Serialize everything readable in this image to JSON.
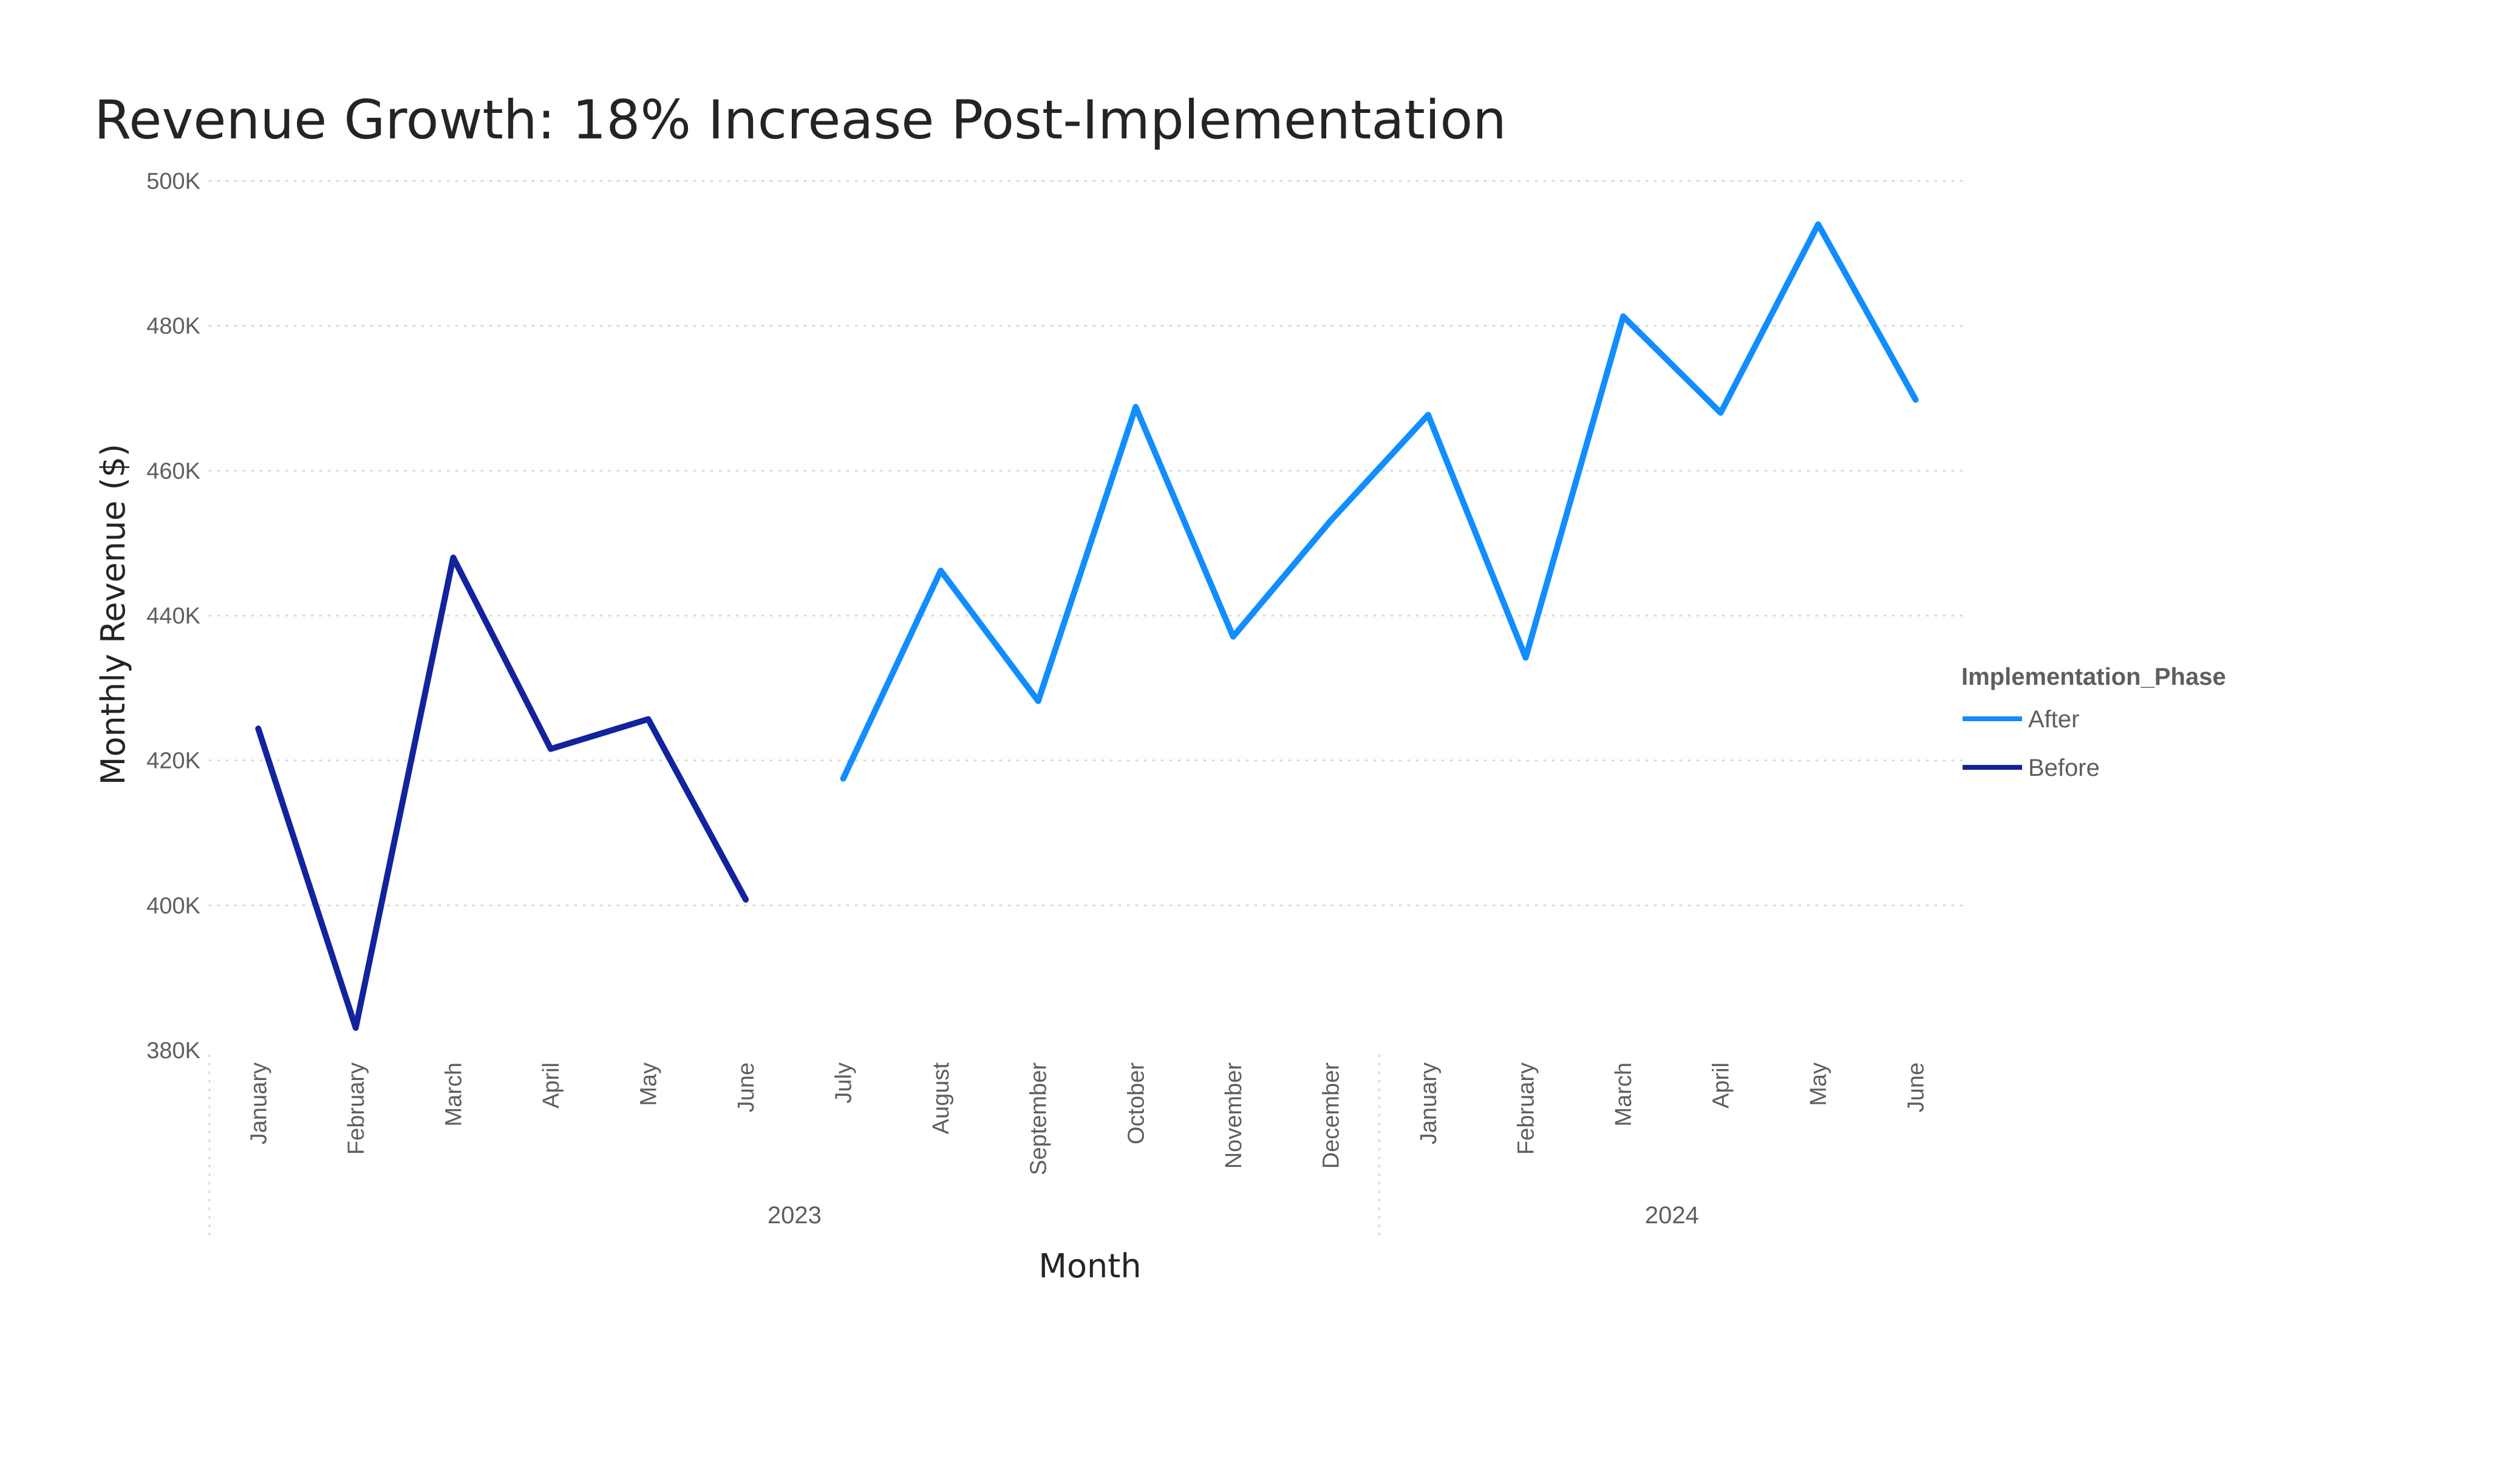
{
  "chart_data": {
    "type": "line",
    "title": "Revenue Growth: 18% Increase Post-Implementation",
    "xlabel": "Month",
    "ylabel": "Monthly Revenue ($)",
    "ylim": [
      380000,
      500000
    ],
    "yticks": [
      {
        "value": 380000,
        "label": "380K"
      },
      {
        "value": 400000,
        "label": "400K"
      },
      {
        "value": 420000,
        "label": "420K"
      },
      {
        "value": 440000,
        "label": "440K"
      },
      {
        "value": 460000,
        "label": "460K"
      },
      {
        "value": 480000,
        "label": "480K"
      },
      {
        "value": 500000,
        "label": "500K"
      }
    ],
    "grid": true,
    "categories": [
      "January",
      "February",
      "March",
      "April",
      "May",
      "June",
      "July",
      "August",
      "September",
      "October",
      "November",
      "December",
      "January",
      "February",
      "March",
      "April",
      "May",
      "June"
    ],
    "groups": [
      {
        "label": "2023",
        "start": 0,
        "end": 11
      },
      {
        "label": "2024",
        "start": 12,
        "end": 17
      }
    ],
    "legend": {
      "title": "Implementation_Phase",
      "position": "right",
      "entries": [
        "After",
        "Before"
      ]
    },
    "series": [
      {
        "name": "After",
        "color": "#118dff",
        "values": [
          null,
          null,
          null,
          null,
          null,
          null,
          417500,
          446200,
          428200,
          468800,
          437100,
          453100,
          467700,
          434200,
          481300,
          468000,
          494000,
          469800
        ]
      },
      {
        "name": "Before",
        "color": "#12239e",
        "values": [
          424400,
          383100,
          448000,
          421600,
          425700,
          400800,
          null,
          null,
          null,
          null,
          null,
          null,
          null,
          null,
          null,
          null,
          null,
          null
        ]
      }
    ]
  }
}
